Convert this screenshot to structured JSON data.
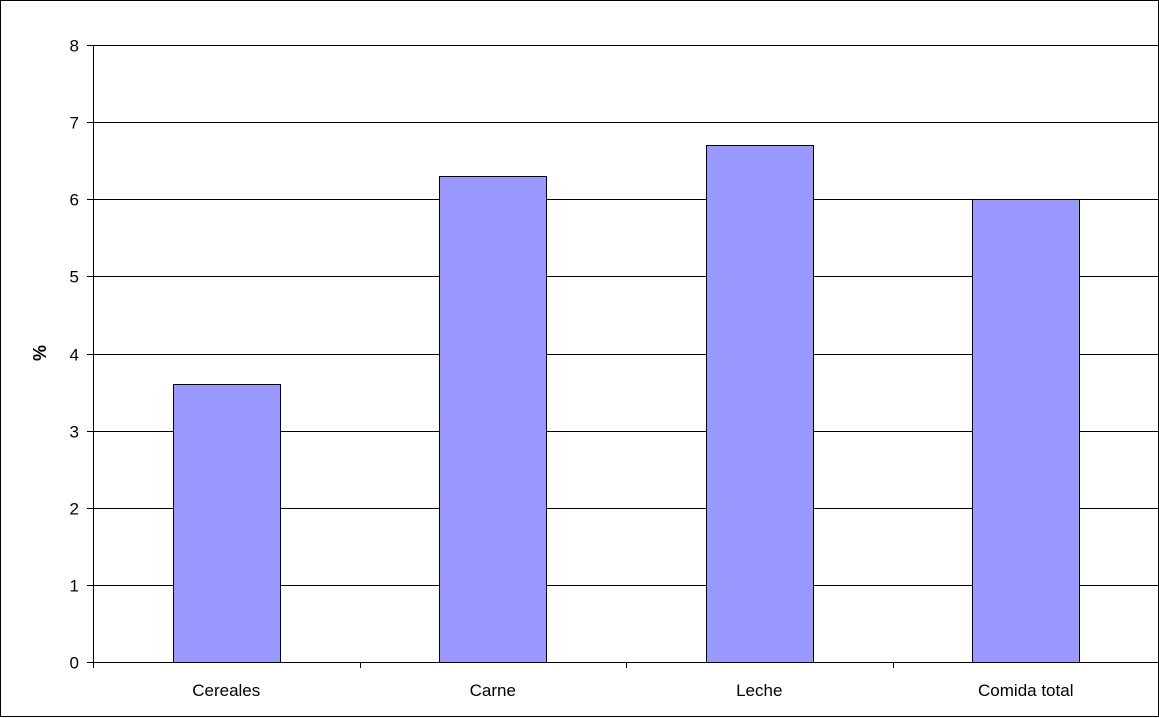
{
  "chart_data": {
    "type": "bar",
    "title": "",
    "xlabel": "",
    "ylabel": "%",
    "categories": [
      "Cereales",
      "Carne",
      "Leche",
      "Comida total"
    ],
    "values": [
      3.6,
      6.3,
      6.7,
      6.0
    ],
    "ylim": [
      0,
      8
    ],
    "yticks": [
      0,
      1,
      2,
      3,
      4,
      5,
      6,
      7,
      8
    ],
    "grid": true,
    "legend": "none",
    "bar_color": "#9999ff",
    "bar_border_color": "#000000"
  }
}
